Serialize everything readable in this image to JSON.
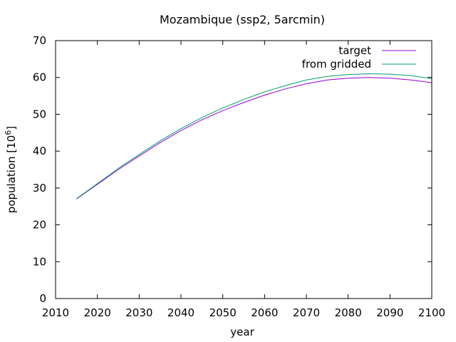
{
  "chart_data": {
    "type": "line",
    "title": "Mozambique (ssp2, 5arcmin)",
    "xlabel": "year",
    "ylabel": {
      "text": "population [10",
      "sup": "6",
      "close": "]"
    },
    "xlim": [
      2010,
      2100
    ],
    "ylim": [
      0,
      70
    ],
    "xticks": [
      2010,
      2020,
      2030,
      2040,
      2050,
      2060,
      2070,
      2080,
      2090,
      2100
    ],
    "yticks": [
      0,
      10,
      20,
      30,
      40,
      50,
      60,
      70
    ],
    "grid": false,
    "legend_position": "top-right",
    "x": [
      2015,
      2020,
      2025,
      2030,
      2035,
      2040,
      2045,
      2050,
      2055,
      2060,
      2065,
      2070,
      2075,
      2080,
      2085,
      2090,
      2095,
      2100
    ],
    "series": [
      {
        "name": "target",
        "color": "#9400d3",
        "values": [
          27.0,
          31.0,
          35.0,
          38.7,
          42.3,
          45.6,
          48.5,
          51.0,
          53.2,
          55.2,
          56.9,
          58.3,
          59.3,
          59.8,
          60.0,
          59.8,
          59.3,
          58.6
        ]
      },
      {
        "name": "from gridded",
        "color": "#009e73",
        "values": [
          27.1,
          31.2,
          35.3,
          39.1,
          42.8,
          46.1,
          49.1,
          51.7,
          54.0,
          56.1,
          57.8,
          59.3,
          60.3,
          60.8,
          61.0,
          60.9,
          60.5,
          59.7
        ]
      }
    ]
  }
}
